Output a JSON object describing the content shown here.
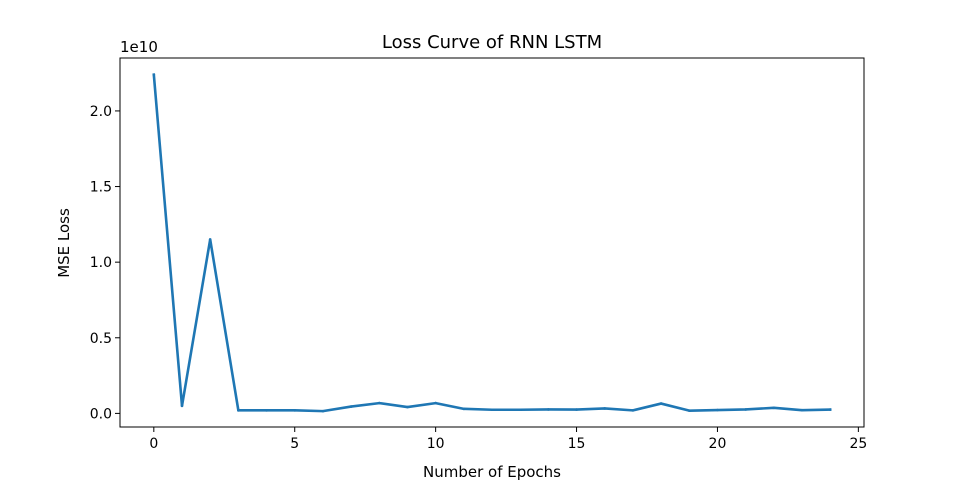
{
  "chart_data": {
    "type": "line",
    "title": "Loss Curve of RNN LSTM",
    "xlabel": "Number of Epochs",
    "ylabel": "MSE Loss",
    "y_offset_text": "1e10",
    "xlim": [
      -1.2,
      25.2
    ],
    "ylim": [
      -0.09,
      2.35
    ],
    "x_ticks": [
      0,
      5,
      10,
      15,
      20,
      25
    ],
    "x_tick_labels": [
      "0",
      "5",
      "10",
      "15",
      "20",
      "25"
    ],
    "y_ticks": [
      0.0,
      0.5,
      1.0,
      1.5,
      2.0
    ],
    "y_tick_labels": [
      "0.0",
      "0.5",
      "1.0",
      "1.5",
      "2.0"
    ],
    "grid": false,
    "legend": false,
    "series": [
      {
        "color": "#1f77b4",
        "x": [
          0,
          1,
          2,
          3,
          4,
          5,
          6,
          7,
          8,
          9,
          10,
          11,
          12,
          13,
          14,
          15,
          16,
          17,
          18,
          19,
          20,
          21,
          22,
          23,
          24
        ],
        "y": [
          2.24,
          0.05,
          1.15,
          0.02,
          0.02,
          0.02,
          0.015,
          0.045,
          0.068,
          0.042,
          0.068,
          0.03,
          0.024,
          0.024,
          0.026,
          0.025,
          0.033,
          0.02,
          0.065,
          0.018,
          0.022,
          0.026,
          0.037,
          0.021,
          0.025
        ]
      }
    ]
  }
}
